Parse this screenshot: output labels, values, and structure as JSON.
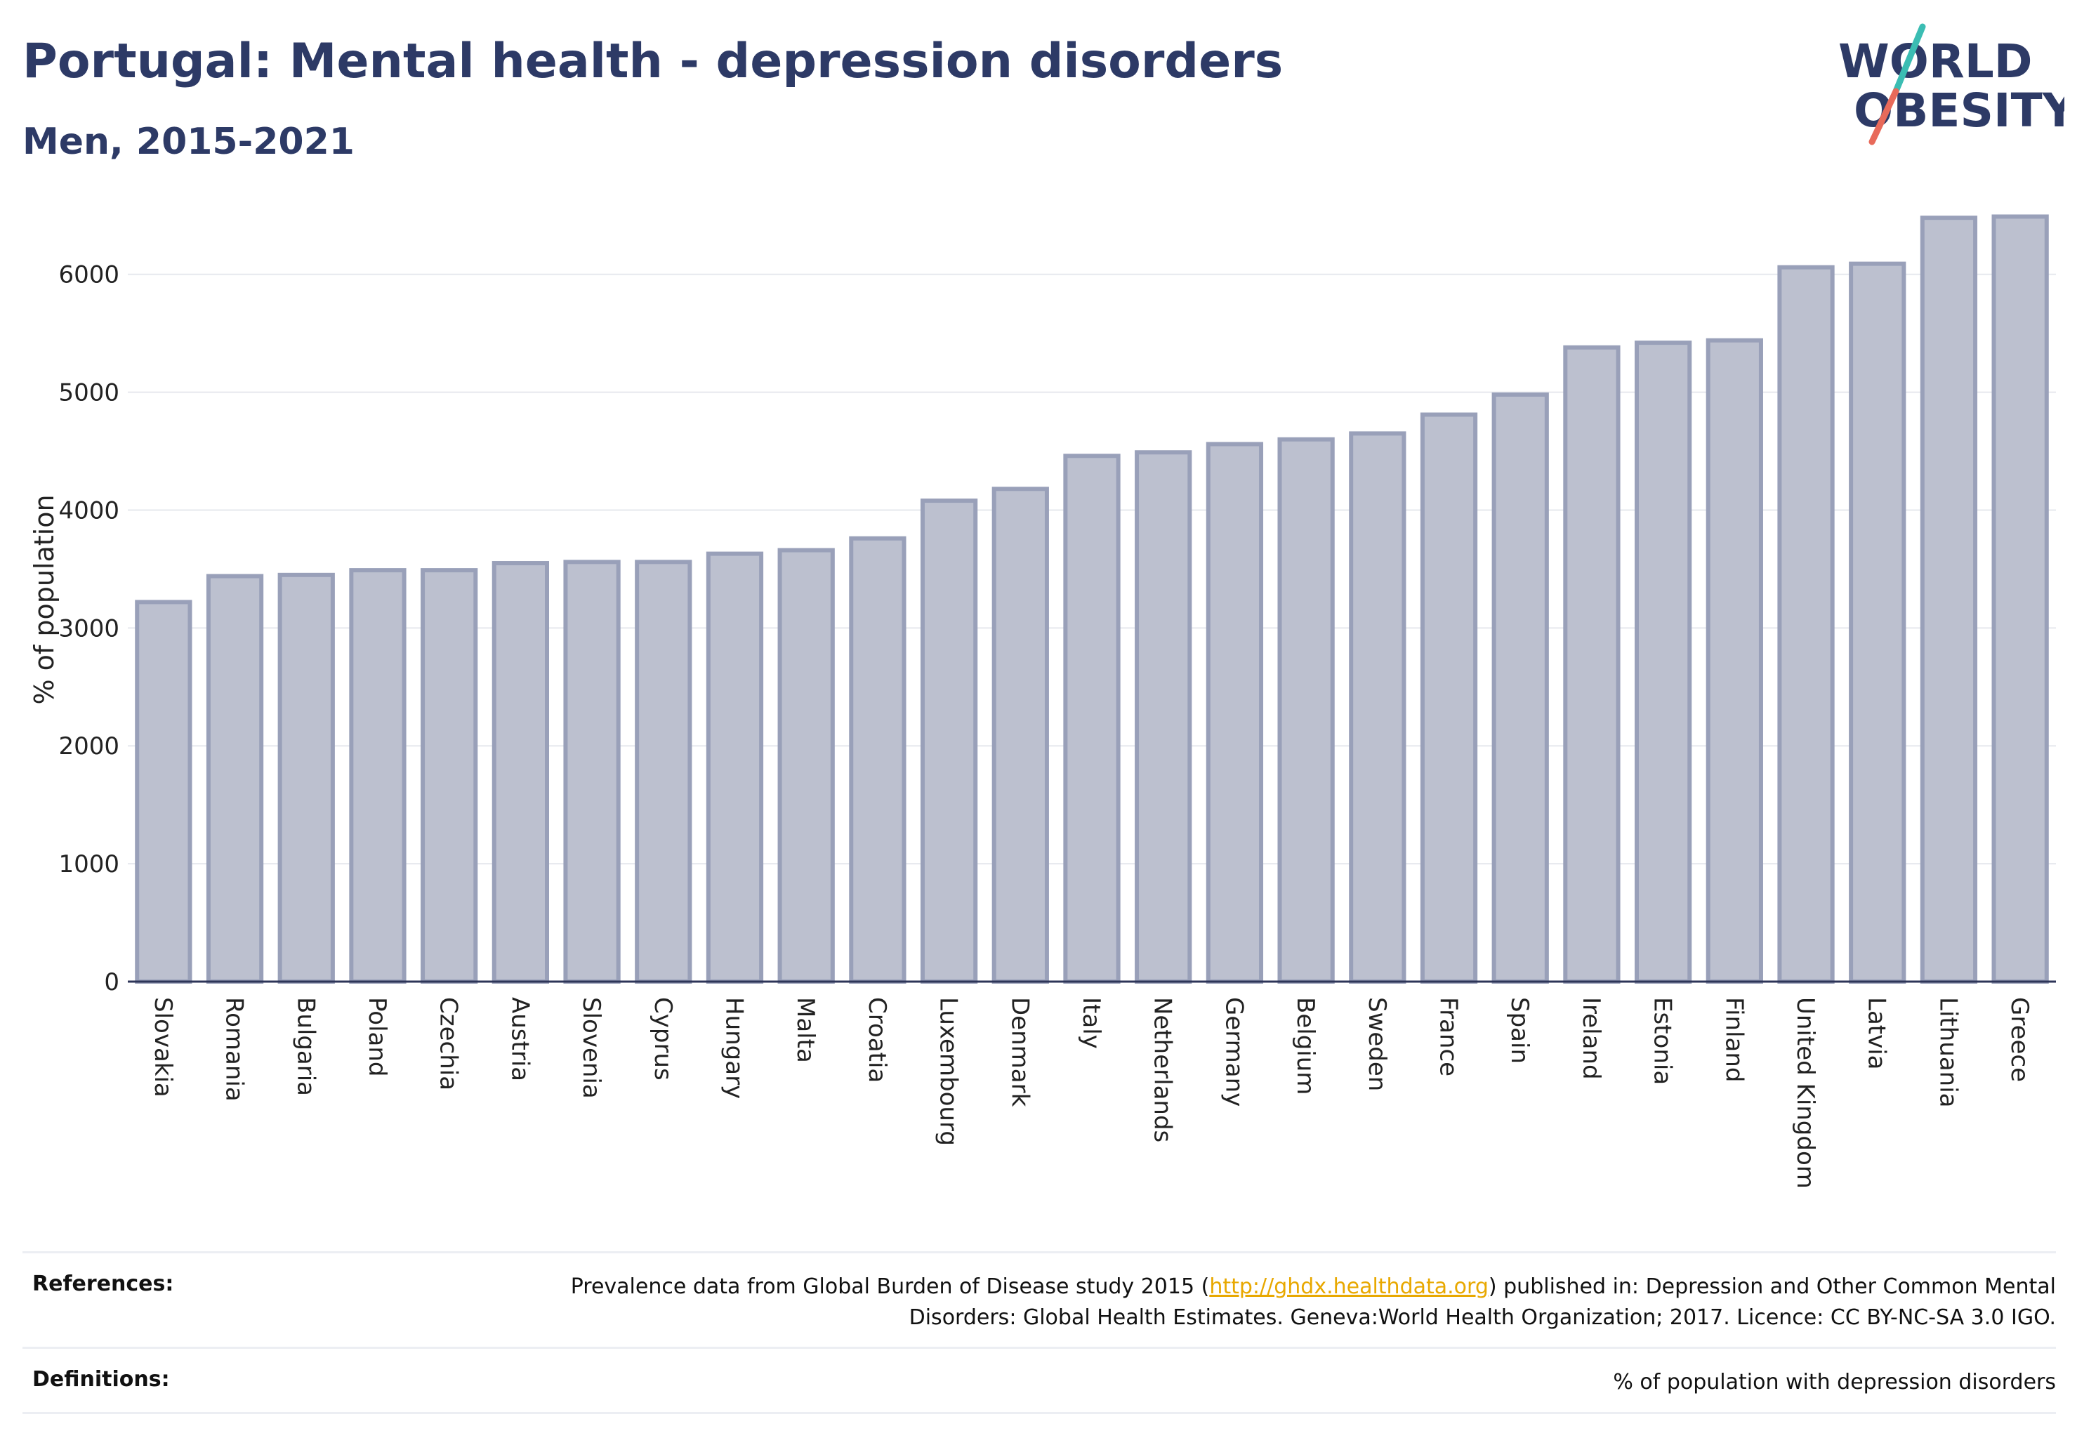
{
  "title": "Portugal: Mental health - depression disorders",
  "subtitle": "Men, 2015-2021",
  "logo": {
    "line1": "WORLD",
    "line2": "OBESITY",
    "colors": {
      "text": "#2d3a66",
      "slash_top": "#3bbdb3",
      "slash_bottom": "#e86a5a"
    }
  },
  "chart_data": {
    "type": "bar",
    "ylabel": "% of population",
    "xlabel": "",
    "ylim": [
      0,
      6600
    ],
    "yticks": [
      0,
      1000,
      2000,
      3000,
      4000,
      5000,
      6000
    ],
    "grid": true,
    "categories": [
      "Slovakia",
      "Romania",
      "Bulgaria",
      "Poland",
      "Czechia",
      "Austria",
      "Slovenia",
      "Cyprus",
      "Hungary",
      "Malta",
      "Croatia",
      "Luxembourg",
      "Denmark",
      "Italy",
      "Netherlands",
      "Germany",
      "Belgium",
      "Sweden",
      "France",
      "Spain",
      "Ireland",
      "Estonia",
      "Finland",
      "United Kingdom",
      "Latvia",
      "Lithuania",
      "Greece"
    ],
    "values": [
      3220,
      3440,
      3450,
      3490,
      3490,
      3550,
      3560,
      3560,
      3630,
      3660,
      3760,
      4080,
      4180,
      4460,
      4490,
      4560,
      4600,
      4650,
      4810,
      4980,
      5380,
      5420,
      5440,
      6060,
      6090,
      6480,
      6490
    ],
    "colors": {
      "bar_fill": "#bcc0cf",
      "bar_stroke": "#99a0b9"
    }
  },
  "footer": {
    "references_label": "References:",
    "references_text_1": "Prevalence data from Global Burden of Disease study 2015 (",
    "references_link": "http://ghdx.healthdata.org",
    "references_text_2": ") published in: Depression and Other Common Mental Disorders: Global Health Estimates. Geneva:World Health Organization; 2017. Licence: CC BY-NC-SA 3.0 IGO.",
    "definitions_label": "Definitions:",
    "definitions_text": "% of population with depression disorders"
  }
}
